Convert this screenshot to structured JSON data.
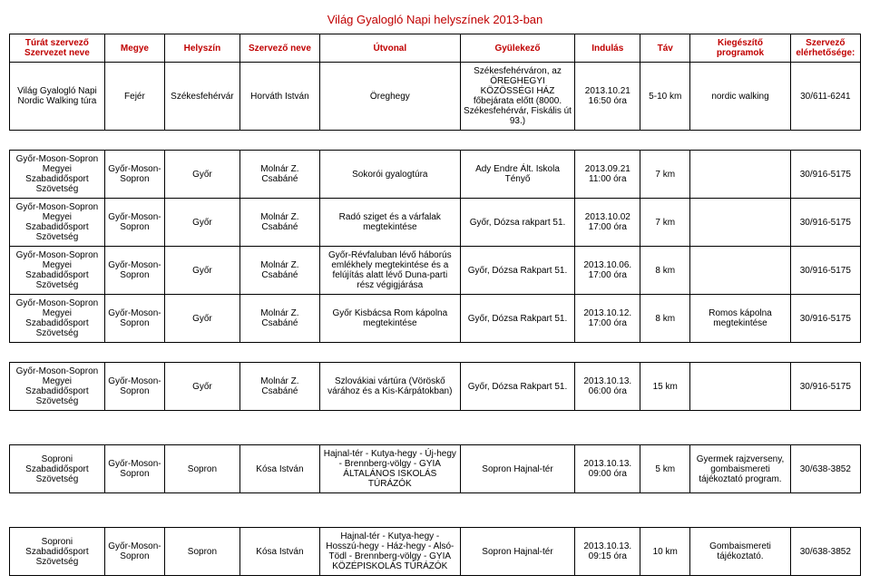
{
  "title": "Világ Gyalogló Napi helyszínek 2013-ban",
  "headers": [
    "Túrát szervező Szervezet neve",
    "Megye",
    "Helyszín",
    "Szervező neve",
    "Útvonal",
    "Gyülekező",
    "Indulás",
    "Táv",
    "Kiegészítő programok",
    "Szervező elérhetősége:"
  ],
  "rows": [
    {
      "org": "Világ Gyalogló Napi Nordic Walking túra",
      "county": "Fejér",
      "loc": "Székesfehérvár",
      "organizer": "Horváth István",
      "route": "Öreghegy",
      "meet": "Székesfehérváron, az ÖREGHEGYI KÖZÖSSÉGI HÁZ főbejárata előtt (8000. Székesfehérvár, Fiskális út 93.)",
      "start": "2013.10.21 16:50 óra",
      "dist": "5-10 km",
      "extra": "nordic walking",
      "contact": "30/611-6241"
    },
    {
      "org": "Győr-Moson-Sopron Megyei Szabadidősport Szövetség",
      "county": "Győr-Moson-Sopron",
      "loc": "Győr",
      "organizer": "Molnár Z. Csabáné",
      "route": "Sokorói gyalogtúra",
      "meet": "Ady Endre Ált. Iskola Tényő",
      "start": "2013.09.21 11:00 óra",
      "dist": "7 km",
      "extra": "",
      "contact": "30/916-5175"
    },
    {
      "org": "Győr-Moson-Sopron Megyei Szabadidősport Szövetség",
      "county": "Győr-Moson-Sopron",
      "loc": "Győr",
      "organizer": "Molnár Z. Csabáné",
      "route": "Radó sziget és a várfalak megtekintése",
      "meet": "Győr, Dózsa rakpart 51.",
      "start": "2013.10.02 17:00 óra",
      "dist": "7 km",
      "extra": "",
      "contact": "30/916-5175"
    },
    {
      "org": "Győr-Moson-Sopron Megyei Szabadidősport Szövetség",
      "county": "Győr-Moson-Sopron",
      "loc": "Győr",
      "organizer": "Molnár Z. Csabáné",
      "route": "Győr-Révfaluban lévő háborús emlékhely megtekintése és a felújítás alatt lévő Duna-parti rész végigjárása",
      "meet": "Győr, Dózsa Rakpart 51.",
      "start": "2013.10.06. 17:00 óra",
      "dist": "8 km",
      "extra": "",
      "contact": "30/916-5175"
    },
    {
      "org": "Győr-Moson-Sopron Megyei Szabadidősport Szövetség",
      "county": "Győr-Moson-Sopron",
      "loc": "Győr",
      "organizer": "Molnár Z. Csabáné",
      "route": "Győr Kisbácsa Rom kápolna megtekintése",
      "meet": "Győr, Dózsa Rakpart 51.",
      "start": "2013.10.12. 17:00 óra",
      "dist": "8 km",
      "extra": "Romos kápolna megtekintése",
      "contact": "30/916-5175"
    },
    {
      "org": "Győr-Moson-Sopron Megyei Szabadidősport Szövetség",
      "county": "Győr-Moson-Sopron",
      "loc": "Győr",
      "organizer": "Molnár Z. Csabáné",
      "route": "Szlovákiai vártúra (Vöröskő várához és a Kis-Kárpátokban)",
      "meet": "Győr, Dózsa Rakpart 51.",
      "start": "2013.10.13. 06:00 óra",
      "dist": "15 km",
      "extra": "",
      "contact": "30/916-5175"
    },
    {
      "org": "Soproni Szabadidősport Szövetség",
      "county": "Győr-Moson-Sopron",
      "loc": "Sopron",
      "organizer": "Kósa István",
      "route": "Hajnal-tér - Kutya-hegy - Új-hegy - Brennberg-völgy - GYIA ÁLTALÁNOS ISKOLÁS TÚRÁZÓK",
      "meet": "Sopron Hajnal-tér",
      "start": "2013.10.13. 09:00 óra",
      "dist": "5 km",
      "extra": "Gyermek rajzverseny, gombaismereti tájékoztató program.",
      "contact": "30/638-3852"
    },
    {
      "org": "Soproni Szabadidősport Szövetség",
      "county": "Győr-Moson-Sopron",
      "loc": "Sopron",
      "organizer": "Kósa István",
      "route": "Hajnal-tér - Kutya-hegy - Hosszú-hegy - Ház-hegy - Alsó-Tödl - Brennberg-völgy - GYIA KÖZÉPISKOLÁS TÚRÁZÓK",
      "meet": "Sopron Hajnal-tér",
      "start": "2013.10.13. 09:15 óra",
      "dist": "10 km",
      "extra": "Gombaismereti tájékoztató.",
      "contact": "30/638-3852"
    }
  ],
  "breaks_after": [
    0,
    4,
    5,
    6
  ],
  "big_breaks_after": [
    5,
    6
  ]
}
